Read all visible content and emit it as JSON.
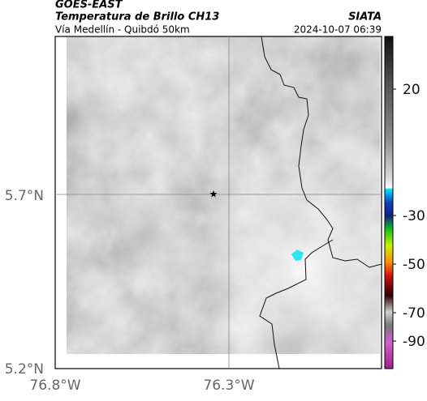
{
  "header": {
    "source": "GOES-EAST",
    "product": "Temperatura de Brillo CH13",
    "region": "Vía Medellín - Quibdó 50km",
    "organization": "SIATA",
    "timestamp": "2024-10-07 06:39"
  },
  "axes": {
    "lat_labels": [
      "5.7°N",
      "5.2°N"
    ],
    "lon_labels": [
      "76.8°W",
      "76.3°W"
    ]
  },
  "colorbar": {
    "ticks": [
      "20",
      "-30",
      "-50",
      "-70",
      "-90"
    ]
  }
}
